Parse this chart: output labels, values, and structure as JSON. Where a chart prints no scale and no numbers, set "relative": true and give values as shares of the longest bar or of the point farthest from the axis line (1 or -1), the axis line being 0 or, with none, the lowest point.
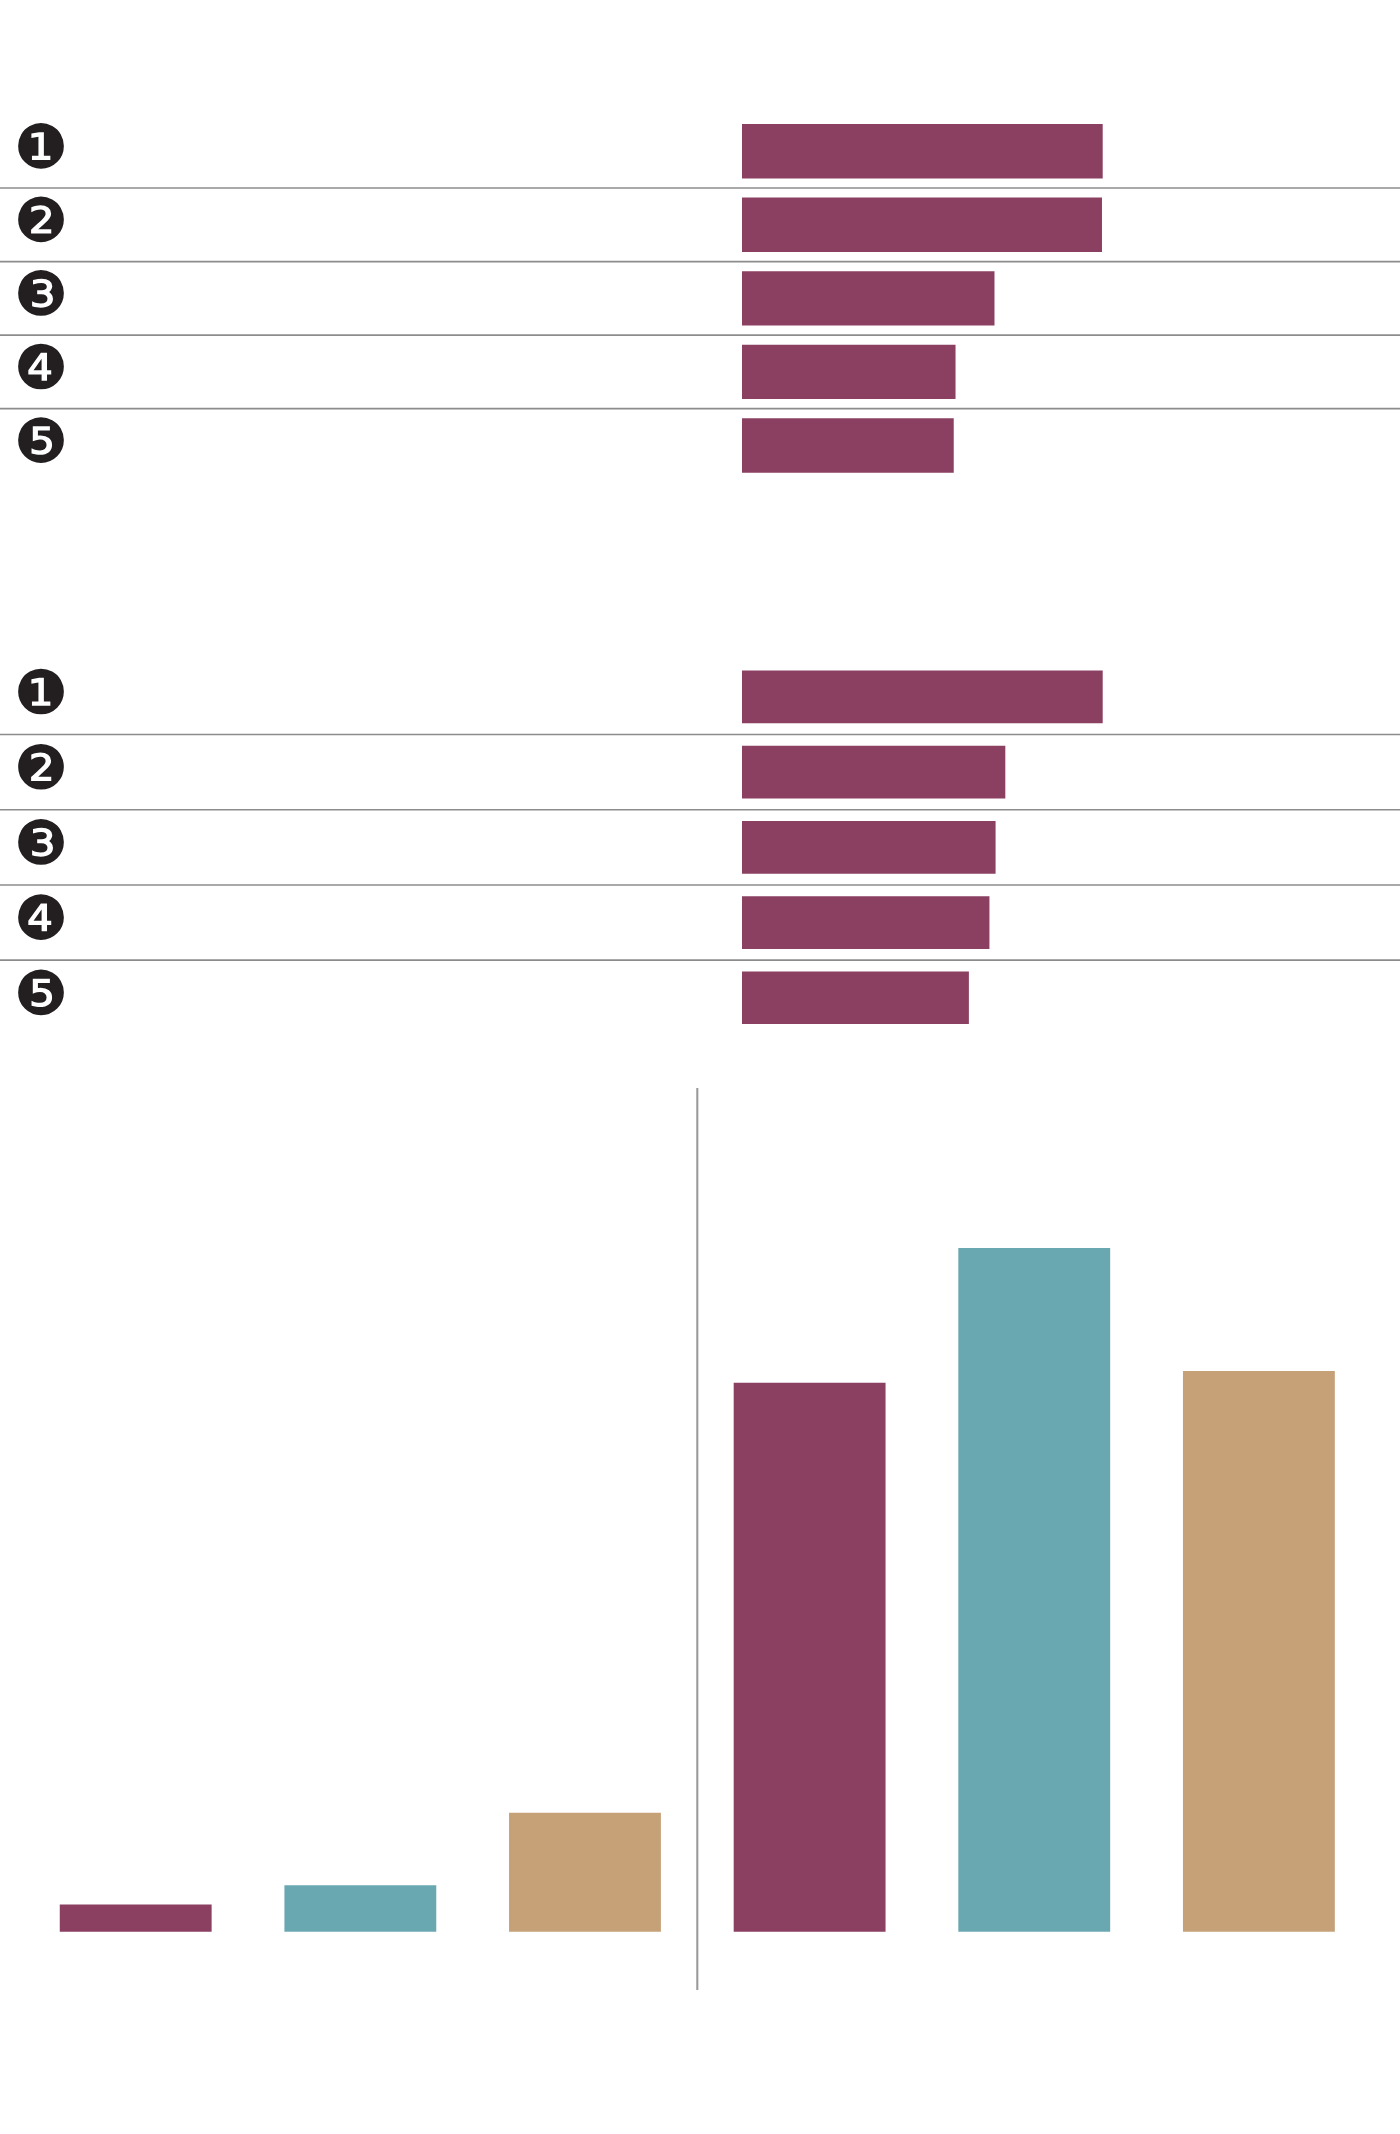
{
  "chart_data": [
    {
      "type": "bar",
      "orientation": "horizontal",
      "relative": true,
      "categories": [
        "❶",
        "❷",
        "❸",
        "❹",
        "❺"
      ],
      "values": [
        1,
        0.998,
        0.7,
        0.592,
        0.587
      ],
      "color": "#8b3f61",
      "grid": "y",
      "tick_labels": "y"
    },
    {
      "type": "bar",
      "orientation": "horizontal",
      "relative": true,
      "categories": [
        "❶",
        "❷",
        "❸",
        "❹",
        "❺"
      ],
      "values": [
        1,
        0.73,
        0.703,
        0.686,
        0.629
      ],
      "color": "#8b3f61",
      "grid": "y",
      "tick_labels": "y"
    },
    {
      "type": "bar",
      "relative": true,
      "categories": [
        null,
        null,
        null,
        null,
        null,
        null
      ],
      "values": [
        0.04,
        0.068,
        0.174,
        0.803,
        1,
        0.82
      ],
      "colors": [
        "#8b3f61",
        "#6aa8b1",
        "#c6a178",
        "#8b3f61",
        "#6aa8b1",
        "#c6a178"
      ],
      "tick_labels": false
    }
  ]
}
